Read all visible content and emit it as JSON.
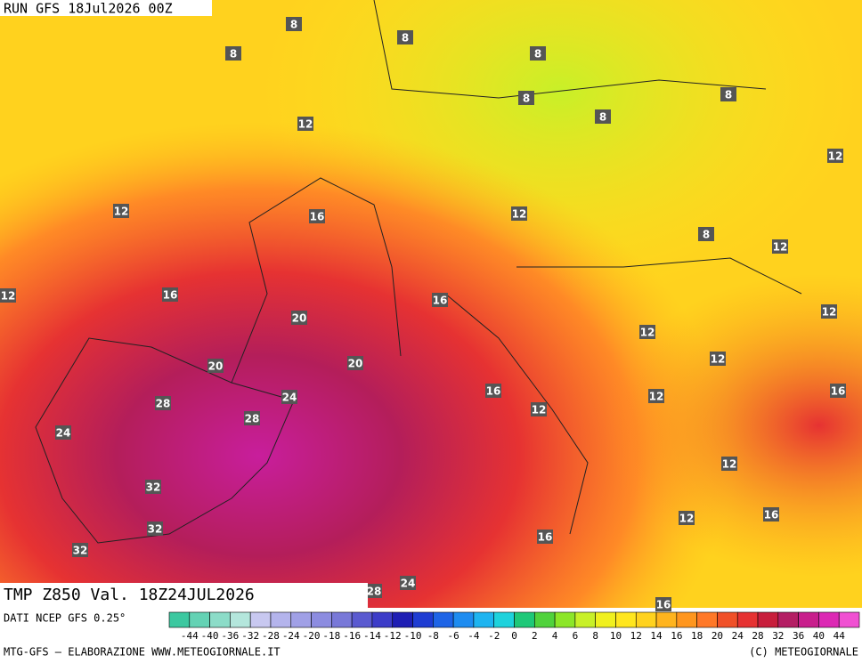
{
  "header": {
    "run": "RUN GFS 18Jul2026 00Z",
    "field": "TMP Z850 Val. 18Z24JUL2026",
    "source": "DATI NCEP GFS 0.25°",
    "credit": "MTG-GFS — ELABORAZIONE WWW.METEOGIORNALE.IT",
    "copyright": "(C) METEOGIORNALE"
  },
  "contour_labels": [
    8,
    8,
    8,
    8,
    8,
    8,
    8,
    12,
    12,
    12,
    16,
    12,
    8,
    12,
    12,
    16,
    16,
    20,
    12,
    12,
    20,
    20,
    12,
    16,
    16,
    24,
    12,
    28,
    12,
    28,
    24,
    12,
    32,
    16,
    12,
    32,
    16,
    32,
    28,
    24,
    16
  ],
  "colorbar": {
    "labels": [
      -44,
      -40,
      -36,
      -32,
      -28,
      -24,
      -20,
      -18,
      -16,
      -14,
      -12,
      -10,
      -8,
      -6,
      -4,
      -2,
      0,
      2,
      4,
      6,
      8,
      10,
      12,
      14,
      16,
      18,
      20,
      24,
      28,
      32,
      36,
      40,
      44
    ],
    "colors": [
      "#3cc8a0",
      "#64d2b4",
      "#8cdcc8",
      "#b4e6dc",
      "#c8c8f0",
      "#b4b4ec",
      "#a0a0e6",
      "#8c8ce0",
      "#7878d8",
      "#5a5ad0",
      "#3c3cc8",
      "#1e1eb4",
      "#1e3cd2",
      "#1e64e6",
      "#1e8cf0",
      "#1eb4f0",
      "#1ed2dc",
      "#1ec878",
      "#50d23c",
      "#8ce628",
      "#c8f028",
      "#f0f01e",
      "#ffe61e",
      "#ffd21e",
      "#ffb41e",
      "#ff961e",
      "#ff7828",
      "#f05028",
      "#e63232",
      "#c81e3c",
      "#b41e64",
      "#c81e8c",
      "#dc28b4",
      "#f050d2"
    ]
  }
}
